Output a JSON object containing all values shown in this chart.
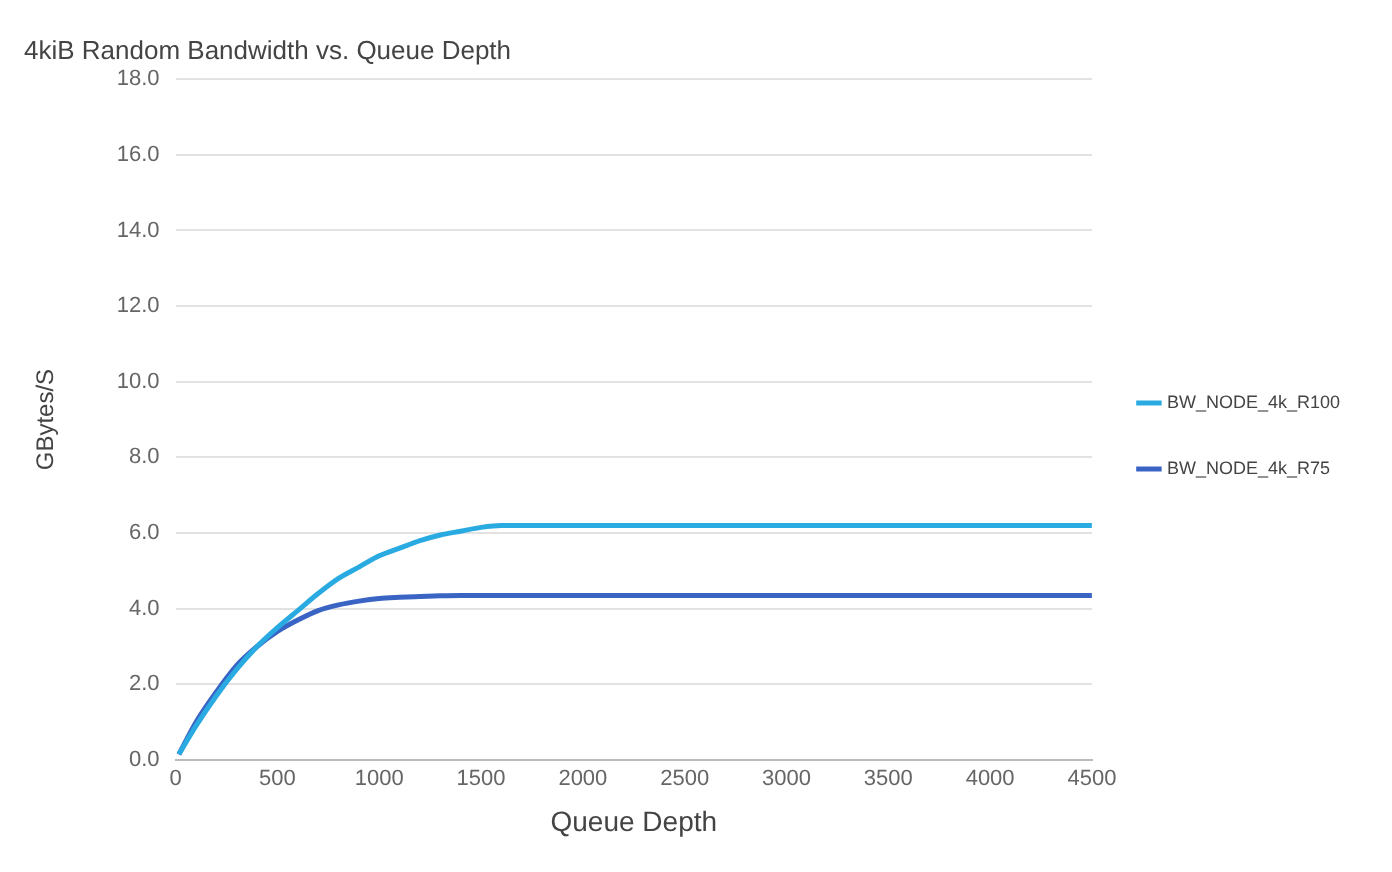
{
  "chart_data": {
    "type": "line",
    "title": "4kiB Random Bandwidth vs. Queue Depth",
    "xlabel": "Queue Depth",
    "ylabel": "GBytes/S",
    "xlim": [
      0,
      4500
    ],
    "xticks": [
      0,
      500,
      1000,
      1500,
      2000,
      2500,
      3000,
      3500,
      4000,
      4500
    ],
    "ylim": [
      0,
      18
    ],
    "yticks": [
      {
        "value": 0,
        "label": "0.0"
      },
      {
        "value": 2,
        "label": "2.0"
      },
      {
        "value": 4,
        "label": "4.0"
      },
      {
        "value": 6,
        "label": "6.0"
      },
      {
        "value": 8,
        "label": "8.0"
      },
      {
        "value": 10,
        "label": "10.0"
      },
      {
        "value": 12,
        "label": "12.0"
      },
      {
        "value": 14,
        "label": "14.0"
      },
      {
        "value": 16,
        "label": "16.0"
      },
      {
        "value": 18,
        "label": "18.0"
      }
    ],
    "grid": "y",
    "legend": "right",
    "marker": "none",
    "line_style": "solid",
    "x": [
      16,
      100,
      200,
      300,
      400,
      500,
      600,
      700,
      800,
      900,
      1000,
      1100,
      1200,
      1300,
      1400,
      1500,
      1600,
      2000,
      2500,
      3000,
      3500,
      4000,
      4500
    ],
    "series": [
      {
        "name": "BW_NODE_4k_R100",
        "color": "#29abe2",
        "values": [
          0.15,
          0.9,
          1.7,
          2.4,
          3.0,
          3.5,
          3.95,
          4.4,
          4.8,
          5.1,
          5.4,
          5.6,
          5.8,
          5.95,
          6.05,
          6.15,
          6.2,
          6.2,
          6.2,
          6.2,
          6.2,
          6.2,
          6.2
        ]
      },
      {
        "name": "BW_NODE_4k_R75",
        "color": "#3a64c4",
        "values": [
          0.15,
          1.0,
          1.8,
          2.5,
          3.0,
          3.4,
          3.7,
          3.95,
          4.1,
          4.2,
          4.27,
          4.3,
          4.32,
          4.34,
          4.35,
          4.35,
          4.35,
          4.35,
          4.35,
          4.35,
          4.35,
          4.35,
          4.35
        ]
      }
    ]
  }
}
